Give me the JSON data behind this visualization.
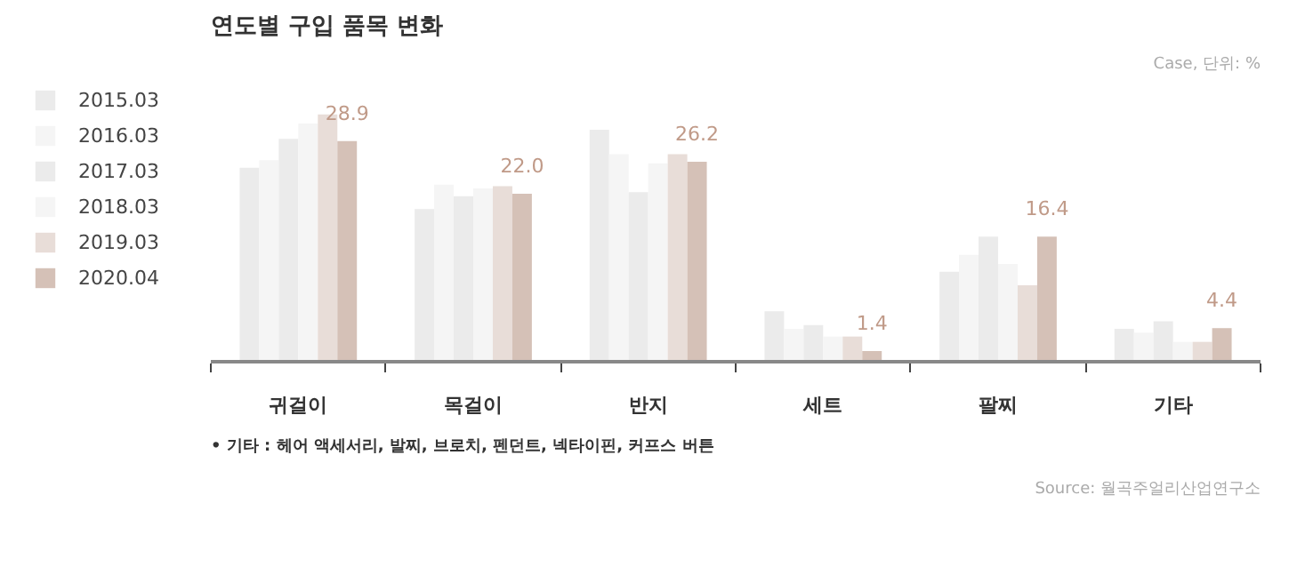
{
  "chart_data": {
    "type": "bar",
    "title": "연도별 구입 품목 변화",
    "categories": [
      "귀걸이",
      "목걸이",
      "반지",
      "세트",
      "팔찌",
      "기타"
    ],
    "series": [
      {
        "name": "2015.03",
        "color": "#ebebeb",
        "values": [
          25.4,
          20.0,
          30.4,
          6.6,
          11.8,
          4.3
        ]
      },
      {
        "name": "2016.03",
        "color": "#f5f5f5",
        "values": [
          26.4,
          23.2,
          27.2,
          4.3,
          14.0,
          3.8
        ]
      },
      {
        "name": "2017.03",
        "color": "#ebebeb",
        "values": [
          29.2,
          21.7,
          22.2,
          4.8,
          16.4,
          5.3
        ]
      },
      {
        "name": "2018.03",
        "color": "#f5f5f5",
        "values": [
          31.2,
          22.7,
          26.0,
          3.3,
          12.8,
          2.6
        ]
      },
      {
        "name": "2019.03",
        "color": "#e8ddd8",
        "values": [
          32.4,
          23.0,
          27.2,
          3.3,
          10.0,
          2.6
        ]
      },
      {
        "name": "2020.04",
        "color": "#d5c1b7",
        "values": [
          28.9,
          22.0,
          26.2,
          1.4,
          16.4,
          4.4
        ],
        "value_labels": [
          "28.9",
          "22.0",
          "26.2",
          "1.4",
          "16.4",
          "4.4"
        ]
      }
    ],
    "tick_labels": "x",
    "grid": false,
    "legend": "left",
    "annotations": [
      "Case, 단위: %",
      "• 기타 : 헤어 액세서리, 발찌, 브로치, 펜던트, 넥타이핀, 커프스 버튼",
      "Source: 월곡주얼리산업연구소"
    ]
  }
}
